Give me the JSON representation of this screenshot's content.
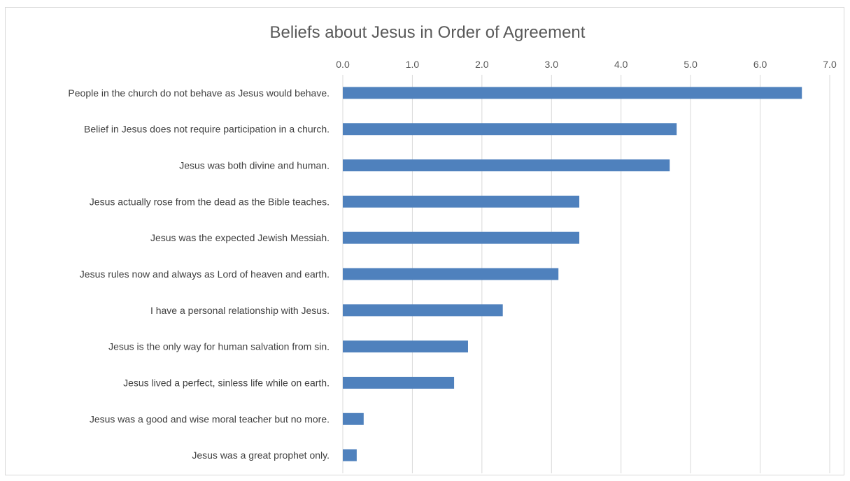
{
  "chart_data": {
    "type": "bar",
    "orientation": "horizontal",
    "title": "Beliefs about Jesus in Order of Agreement",
    "xlabel": "",
    "ylabel": "",
    "xlim": [
      0,
      7
    ],
    "x_ticks": [
      "0.0",
      "1.0",
      "2.0",
      "3.0",
      "4.0",
      "5.0",
      "6.0",
      "7.0"
    ],
    "axis_position": "top",
    "grid": true,
    "legend": "none",
    "bar_color": "#4f81bd",
    "categories": [
      "People in the church do not behave as Jesus would behave.",
      "Belief in Jesus does not require participation in a church.",
      "Jesus was both divine and human.",
      "Jesus actually rose from the dead as the Bible teaches.",
      "Jesus was the expected Jewish Messiah.",
      "Jesus rules now and always as Lord of heaven and earth.",
      "I have a personal relationship with Jesus.",
      "Jesus is the only way for human salvation from sin.",
      "Jesus lived a perfect, sinless life while on earth.",
      "Jesus was a good and wise moral teacher but no more.",
      "Jesus was a great prophet only."
    ],
    "values": [
      6.6,
      4.8,
      4.7,
      3.4,
      3.4,
      3.1,
      2.3,
      1.8,
      1.6,
      0.3,
      0.2
    ]
  }
}
